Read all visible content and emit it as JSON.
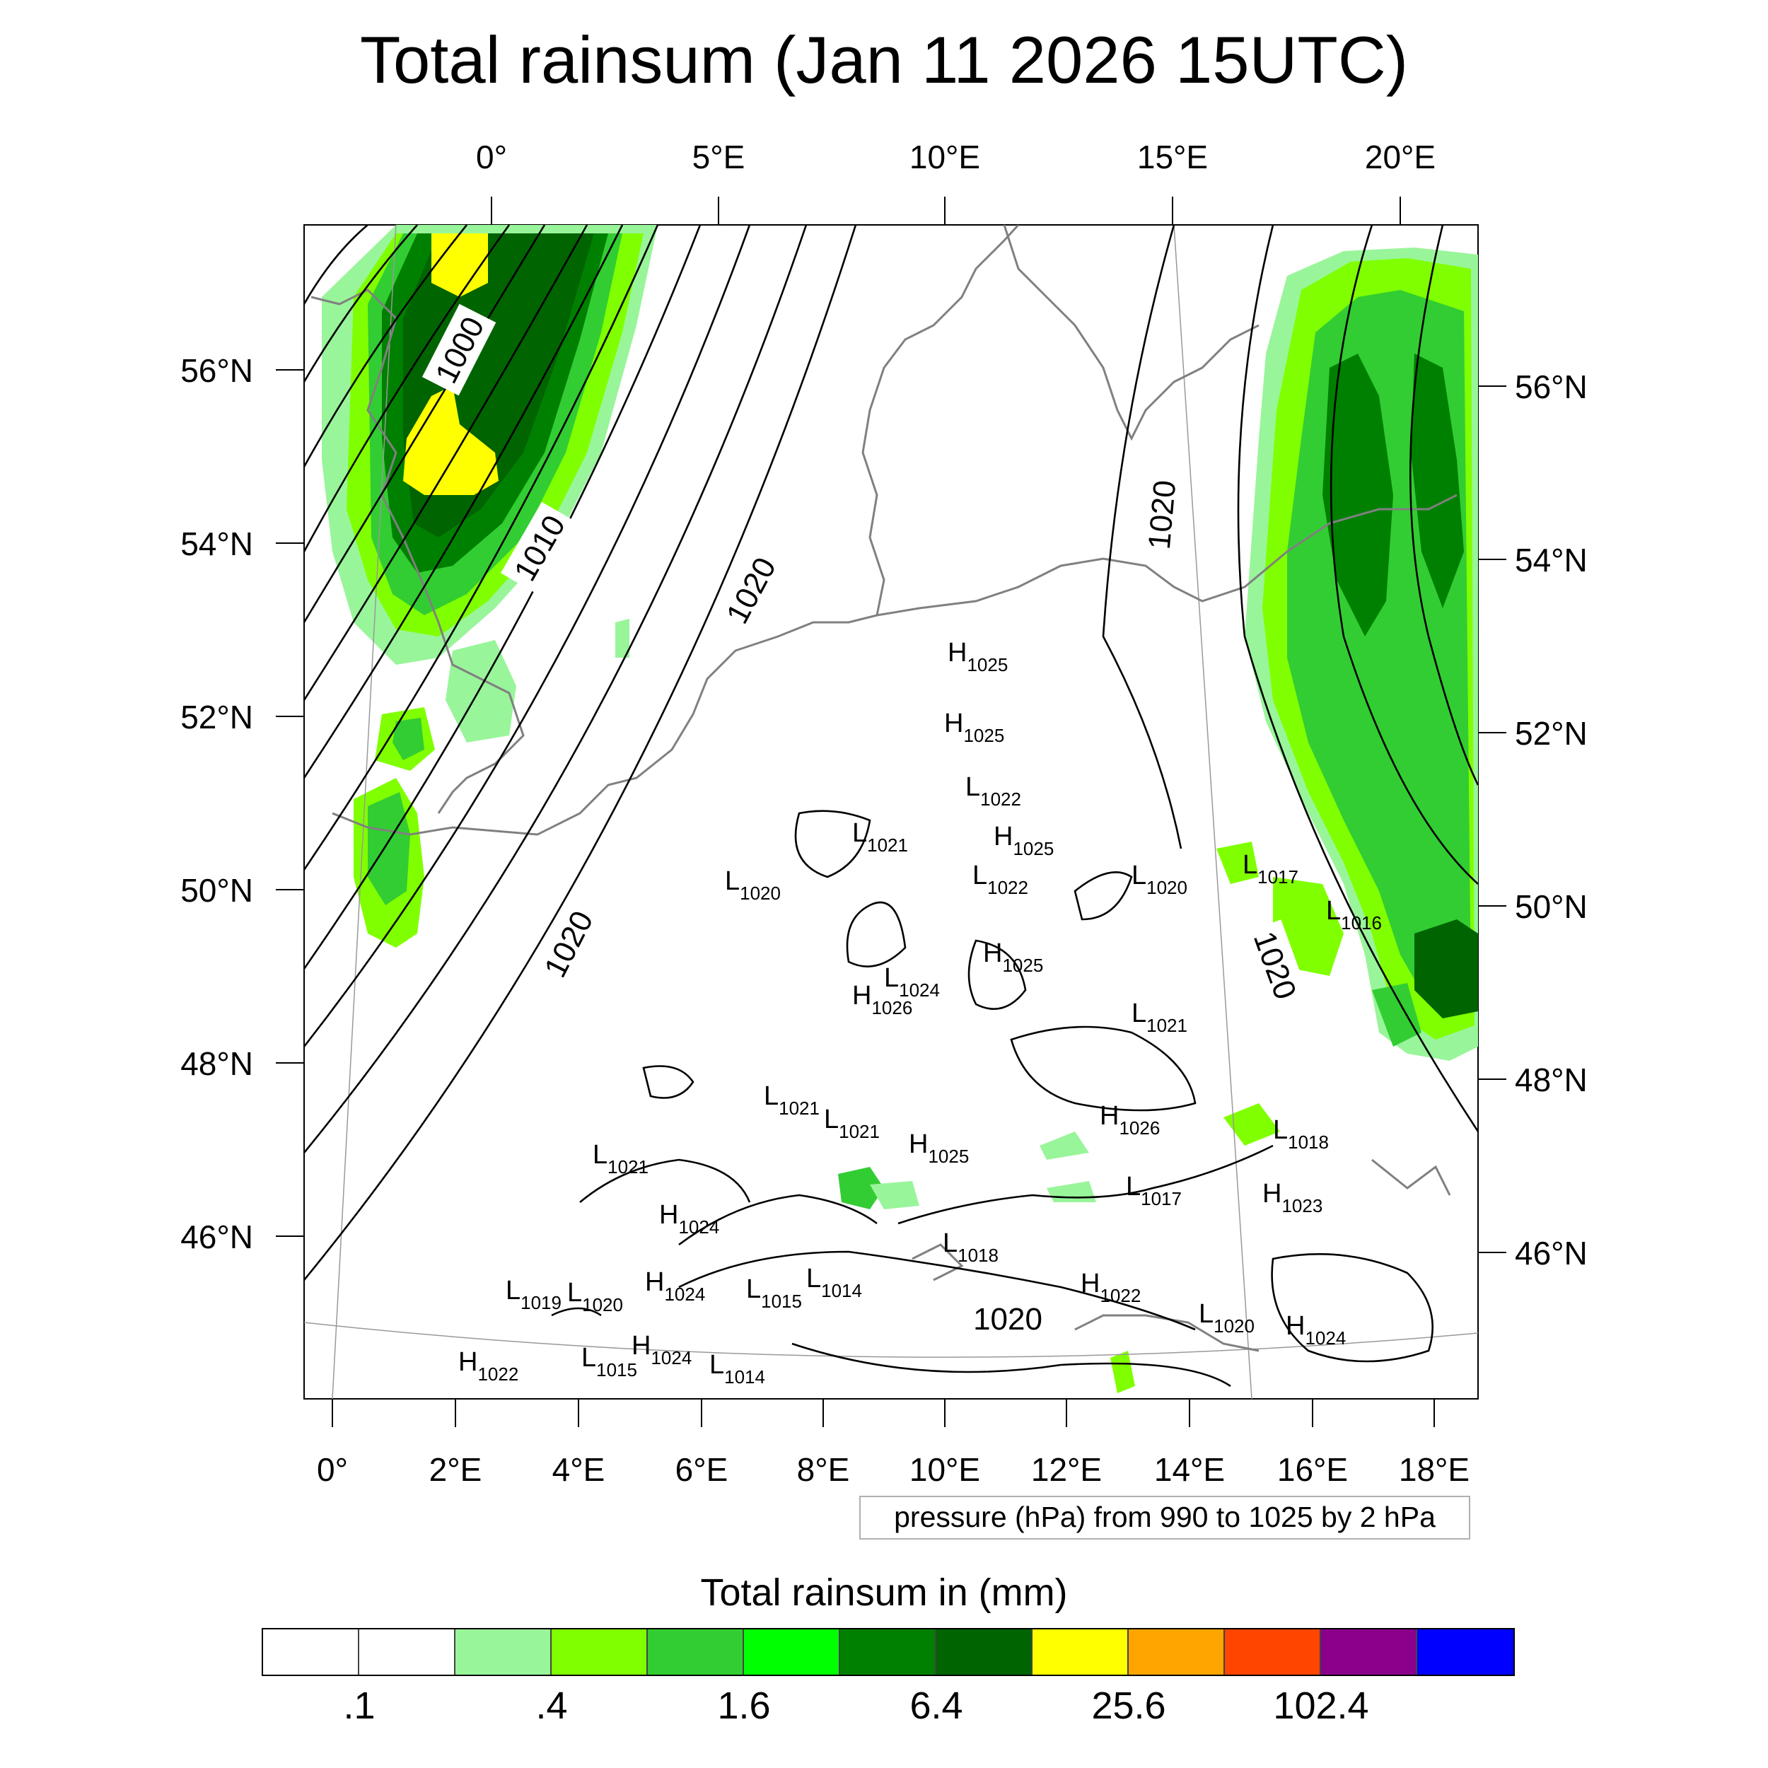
{
  "title": "Total rainsum (Jan 11 2026 15UTC)",
  "top_lon_labels": [
    "0°",
    "5°E",
    "10°E",
    "15°E",
    "20°E"
  ],
  "bottom_lon_labels": [
    "0°",
    "2°E",
    "4°E",
    "6°E",
    "8°E",
    "10°E",
    "12°E",
    "14°E",
    "16°E",
    "18°E"
  ],
  "left_lat_labels": [
    "56°N",
    "54°N",
    "52°N",
    "50°N",
    "48°N",
    "46°N"
  ],
  "right_lat_labels": [
    "56°N",
    "54°N",
    "52°N",
    "50°N",
    "48°N",
    "46°N"
  ],
  "isobar_labels": [
    "1000",
    "1010",
    "1020",
    "1020",
    "1020",
    "1020",
    "1020"
  ],
  "pressure_systems": [
    {
      "type": "H",
      "value": "1025"
    },
    {
      "type": "H",
      "value": "1025"
    },
    {
      "type": "L",
      "value": "1022"
    },
    {
      "type": "L",
      "value": "1021"
    },
    {
      "type": "H",
      "value": "1025"
    },
    {
      "type": "L",
      "value": "1020"
    },
    {
      "type": "L",
      "value": "1022"
    },
    {
      "type": "L",
      "value": "1020"
    },
    {
      "type": "L",
      "value": "1017"
    },
    {
      "type": "L",
      "value": "1016"
    },
    {
      "type": "H",
      "value": "1025"
    },
    {
      "type": "L",
      "value": "1024"
    },
    {
      "type": "H",
      "value": "1026"
    },
    {
      "type": "L",
      "value": "1021"
    },
    {
      "type": "L",
      "value": "1021"
    },
    {
      "type": "L",
      "value": "1021"
    },
    {
      "type": "H",
      "value": "1026"
    },
    {
      "type": "L",
      "value": "1018"
    },
    {
      "type": "H",
      "value": "1025"
    },
    {
      "type": "L",
      "value": "1021"
    },
    {
      "type": "L",
      "value": "1017"
    },
    {
      "type": "H",
      "value": "1023"
    },
    {
      "type": "H",
      "value": "1024"
    },
    {
      "type": "L",
      "value": "1018"
    },
    {
      "type": "L",
      "value": "1019"
    },
    {
      "type": "L",
      "value": "1020"
    },
    {
      "type": "H",
      "value": "1024"
    },
    {
      "type": "L",
      "value": "1015"
    },
    {
      "type": "L",
      "value": "1014"
    },
    {
      "type": "H",
      "value": "1022"
    },
    {
      "type": "L",
      "value": "1020"
    },
    {
      "type": "H",
      "value": "1024"
    },
    {
      "type": "H",
      "value": "1022"
    },
    {
      "type": "L",
      "value": "1015"
    },
    {
      "type": "H",
      "value": "1024"
    },
    {
      "type": "L",
      "value": "1014"
    }
  ],
  "contour_note": "pressure (hPa) from 990 to 1025 by 2 hPa",
  "colorbar": {
    "title": "Total rainsum in (mm)",
    "colors": [
      "#ffffff",
      "#ffffff",
      "#99f59a",
      "#80ff00",
      "#32cd32",
      "#00ff00",
      "#008000",
      "#006400",
      "#ffff00",
      "#ffa500",
      "#ff4500",
      "#8b008b",
      "#0000ff"
    ],
    "labels": [
      ".1",
      ".4",
      "1.6",
      "6.4",
      "25.6",
      "102.4"
    ]
  }
}
